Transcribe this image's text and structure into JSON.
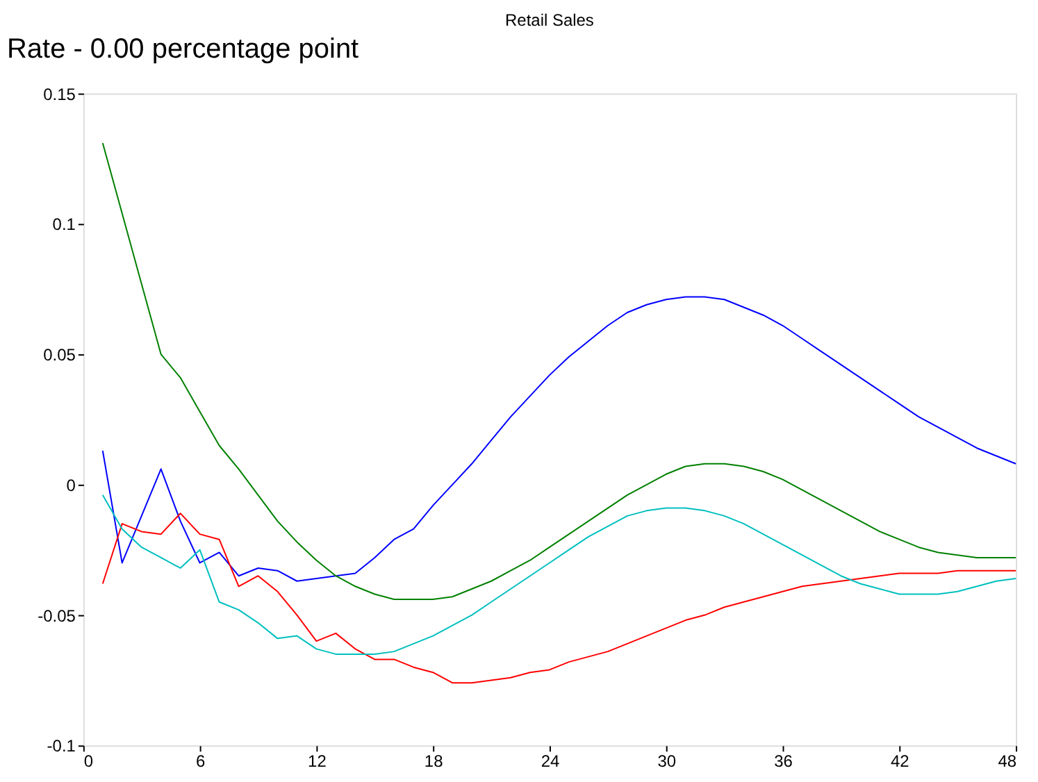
{
  "chart_data": {
    "type": "line",
    "title": "Retail Sales",
    "annotations": [
      "Rate - 0.00 percentage point"
    ],
    "x": [
      1,
      2,
      3,
      4,
      5,
      6,
      7,
      8,
      9,
      10,
      11,
      12,
      13,
      14,
      15,
      16,
      17,
      18,
      19,
      20,
      21,
      22,
      23,
      24,
      25,
      26,
      27,
      28,
      29,
      30,
      31,
      32,
      33,
      34,
      35,
      36,
      37,
      38,
      39,
      40,
      41,
      42,
      43,
      44,
      45,
      46,
      47,
      48
    ],
    "series": [
      {
        "color": "#0000ff",
        "values": [
          0.013,
          -0.03,
          -0.012,
          0.006,
          -0.014,
          -0.03,
          -0.026,
          -0.035,
          -0.032,
          -0.033,
          -0.037,
          -0.036,
          -0.035,
          -0.034,
          -0.028,
          -0.021,
          -0.017,
          -0.008,
          0.0,
          0.008,
          0.017,
          0.026,
          0.034,
          0.042,
          0.049,
          0.055,
          0.061,
          0.066,
          0.069,
          0.071,
          0.072,
          0.072,
          0.071,
          0.068,
          0.065,
          0.061,
          0.056,
          0.051,
          0.046,
          0.041,
          0.036,
          0.031,
          0.026,
          0.022,
          0.018,
          0.014,
          0.011,
          0.008
        ]
      },
      {
        "color": "#008000",
        "values": [
          0.131,
          0.104,
          0.077,
          0.05,
          0.041,
          0.028,
          0.015,
          0.006,
          -0.004,
          -0.014,
          -0.022,
          -0.029,
          -0.035,
          -0.039,
          -0.042,
          -0.044,
          -0.044,
          -0.044,
          -0.043,
          -0.04,
          -0.037,
          -0.033,
          -0.029,
          -0.024,
          -0.019,
          -0.014,
          -0.009,
          -0.004,
          0.0,
          0.004,
          0.007,
          0.008,
          0.008,
          0.007,
          0.005,
          0.002,
          -0.002,
          -0.006,
          -0.01,
          -0.014,
          -0.018,
          -0.021,
          -0.024,
          -0.026,
          -0.027,
          -0.028,
          -0.028,
          -0.028
        ]
      },
      {
        "color": "#ff0000",
        "values": [
          -0.038,
          -0.015,
          -0.018,
          -0.019,
          -0.011,
          -0.019,
          -0.021,
          -0.039,
          -0.035,
          -0.041,
          -0.05,
          -0.06,
          -0.057,
          -0.063,
          -0.067,
          -0.067,
          -0.07,
          -0.072,
          -0.076,
          -0.076,
          -0.075,
          -0.074,
          -0.072,
          -0.071,
          -0.068,
          -0.066,
          -0.064,
          -0.061,
          -0.058,
          -0.055,
          -0.052,
          -0.05,
          -0.047,
          -0.045,
          -0.043,
          -0.041,
          -0.039,
          -0.038,
          -0.037,
          -0.036,
          -0.035,
          -0.034,
          -0.034,
          -0.034,
          -0.033,
          -0.033,
          -0.033,
          -0.033
        ]
      },
      {
        "color": "#00bfbf",
        "values": [
          -0.004,
          -0.017,
          -0.024,
          -0.028,
          -0.032,
          -0.025,
          -0.045,
          -0.048,
          -0.053,
          -0.059,
          -0.058,
          -0.063,
          -0.065,
          -0.065,
          -0.065,
          -0.064,
          -0.061,
          -0.058,
          -0.054,
          -0.05,
          -0.045,
          -0.04,
          -0.035,
          -0.03,
          -0.025,
          -0.02,
          -0.016,
          -0.012,
          -0.01,
          -0.009,
          -0.009,
          -0.01,
          -0.012,
          -0.015,
          -0.019,
          -0.023,
          -0.027,
          -0.031,
          -0.035,
          -0.038,
          -0.04,
          -0.042,
          -0.042,
          -0.042,
          -0.041,
          -0.039,
          -0.037,
          -0.036
        ]
      }
    ],
    "xlim": [
      0,
      48
    ],
    "xticks": [
      0,
      6,
      12,
      18,
      24,
      30,
      36,
      42,
      48
    ],
    "ylim": [
      -0.1,
      0.15
    ],
    "yticks": [
      -0.1,
      -0.05,
      0,
      0.05,
      0.1,
      0.15
    ],
    "grid": false,
    "legend": false,
    "marker": "none",
    "line_style": "solid"
  }
}
